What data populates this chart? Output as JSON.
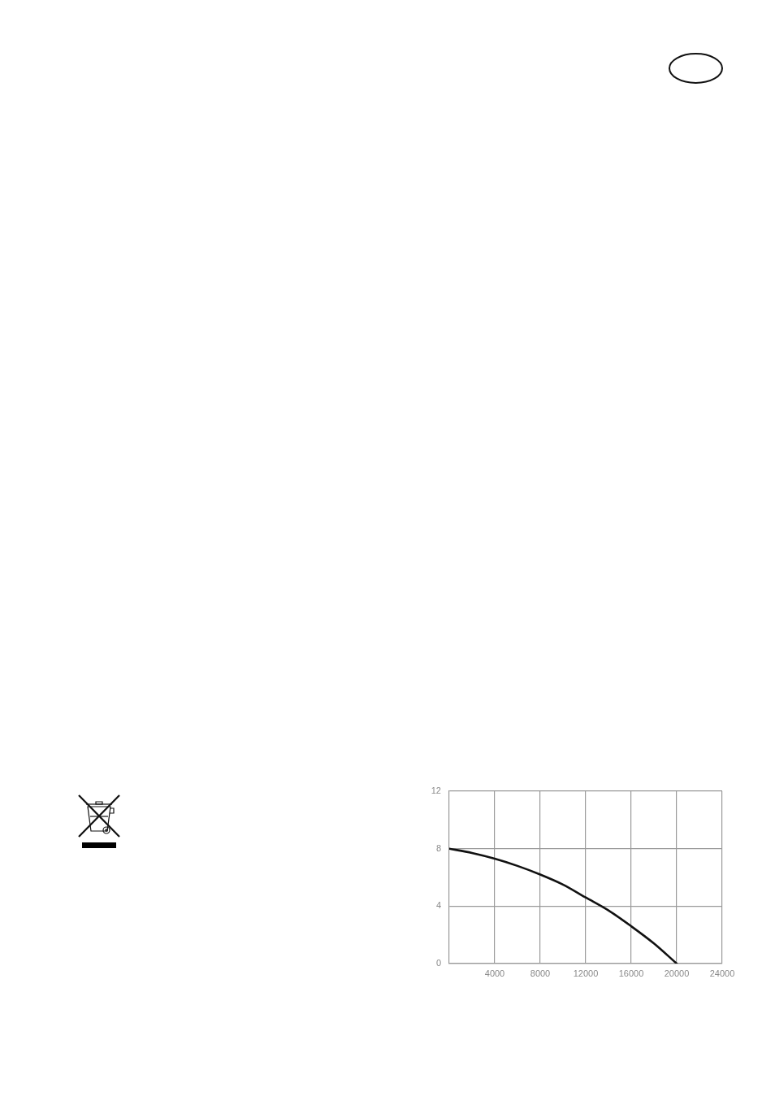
{
  "chart_data": {
    "type": "line",
    "x": [
      0,
      2000,
      4000,
      6000,
      8000,
      10000,
      12000,
      14000,
      16000,
      18000,
      20000
    ],
    "series": [
      {
        "color": "#111111",
        "values": [
          8,
          7.7,
          7.3,
          6.8,
          6.2,
          5.5,
          4.6,
          3.7,
          2.6,
          1.4,
          0
        ]
      }
    ],
    "xlim": [
      0,
      24000
    ],
    "xticks": [
      4000,
      8000,
      12000,
      16000,
      20000,
      24000
    ],
    "ylim": [
      0,
      12
    ],
    "yticks": [
      0,
      4,
      8,
      12
    ],
    "grid": true,
    "marker": "none",
    "line_style": "solid"
  }
}
